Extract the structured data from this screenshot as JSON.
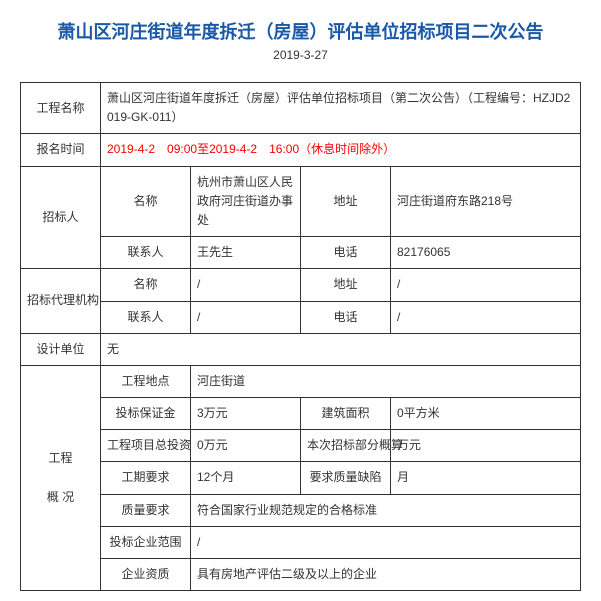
{
  "header": {
    "title": "萧山区河庄街道年度拆迁（房屋）评估单位招标项目二次公告",
    "date": "2019-3-27"
  },
  "labels": {
    "project_name": "工程名称",
    "signup_time": "报名时间",
    "tenderer": "招标人",
    "agency": "招标代理机构",
    "design_unit": "设计单位",
    "overview": "工程",
    "overview2": "概 况",
    "name": "名称",
    "contact": "联系人",
    "address": "地址",
    "phone": "电话",
    "location": "工程地点",
    "deposit": "投标保证金",
    "area": "建筑面积",
    "total_invest": "工程项目总投资",
    "bid_budget": "本次招标部分概算",
    "duration": "工期要求",
    "quality_defect": "要求质量缺陷",
    "quality_req": "质量要求",
    "bidder_scope": "投标企业范围",
    "qualification": "企业资质"
  },
  "values": {
    "project_name": "萧山区河庄街道年度拆迁（房屋）评估单位招标项目（第二次公告）（工程编号：HZJD2019-GK-011）",
    "signup_time": "2019-4-2　09:00至2019-4-2　16:00（休息时间除外）",
    "tenderer_name": "杭州市萧山区人民政府河庄街道办事处",
    "tenderer_addr": "河庄街道府东路218号",
    "tenderer_contact": "王先生",
    "tenderer_phone": "82176065",
    "agency_name": "/",
    "agency_addr": "/",
    "agency_contact": "/",
    "agency_phone": "/",
    "design_unit": "无",
    "location": "河庄街道",
    "deposit": "3万元",
    "area": "0平方米",
    "total_invest": "0万元",
    "bid_budget": "万元",
    "duration": "12个月",
    "quality_defect": "月",
    "quality_req": "符合国家行业规范规定的合格标准",
    "bidder_scope": "/",
    "qualification": "具有房地产评估二级及以上的企业"
  }
}
